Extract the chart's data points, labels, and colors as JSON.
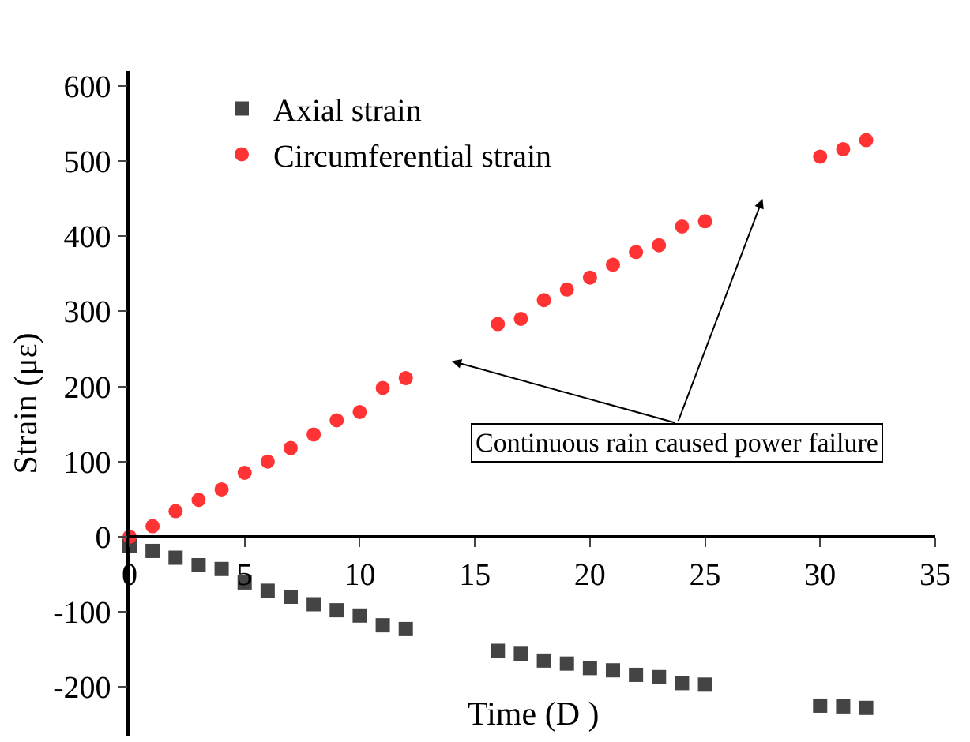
{
  "chart_data": {
    "type": "scatter",
    "xlabel": "Time (D )",
    "ylabel": "Strain (με)",
    "xlim": [
      0,
      35
    ],
    "xticks": [
      0,
      5,
      10,
      15,
      20,
      25,
      30,
      35
    ],
    "ylim": [
      -265,
      620
    ],
    "yticks": [
      -200,
      -100,
      0,
      100,
      200,
      300,
      400,
      500,
      600
    ],
    "grid": false,
    "legend": "top left",
    "annotations": [
      "Continuous rain caused power failure"
    ],
    "series": [
      {
        "name": "Axial strain",
        "color": "#444444",
        "marker": "square",
        "x": [
          0,
          1,
          2,
          3,
          4,
          5,
          6,
          7,
          8,
          9,
          10,
          11,
          12,
          16,
          17,
          18,
          19,
          20,
          21,
          22,
          23,
          24,
          25,
          30,
          31,
          32
        ],
        "values": [
          -12,
          -19,
          -28,
          -38,
          -43,
          -61,
          -72,
          -80,
          -90,
          -98,
          -105,
          -118,
          -123,
          -152,
          -156,
          -165,
          -169,
          -175,
          -178,
          -184,
          -187,
          -195,
          -197,
          -225,
          -226,
          -228
        ]
      },
      {
        "name": "Circumferential strain",
        "color": "#ff3333",
        "marker": "circle",
        "x": [
          0,
          1,
          2,
          3,
          4,
          5,
          6,
          7,
          8,
          9,
          10,
          11,
          12,
          16,
          17,
          18,
          19,
          20,
          21,
          22,
          23,
          24,
          25,
          30,
          31,
          32
        ],
        "values": [
          0,
          14,
          34,
          49,
          63,
          85,
          100,
          118,
          136,
          155,
          166,
          198,
          211,
          283,
          290,
          315,
          329,
          345,
          362,
          379,
          388,
          413,
          420,
          506,
          516,
          528
        ]
      }
    ]
  }
}
